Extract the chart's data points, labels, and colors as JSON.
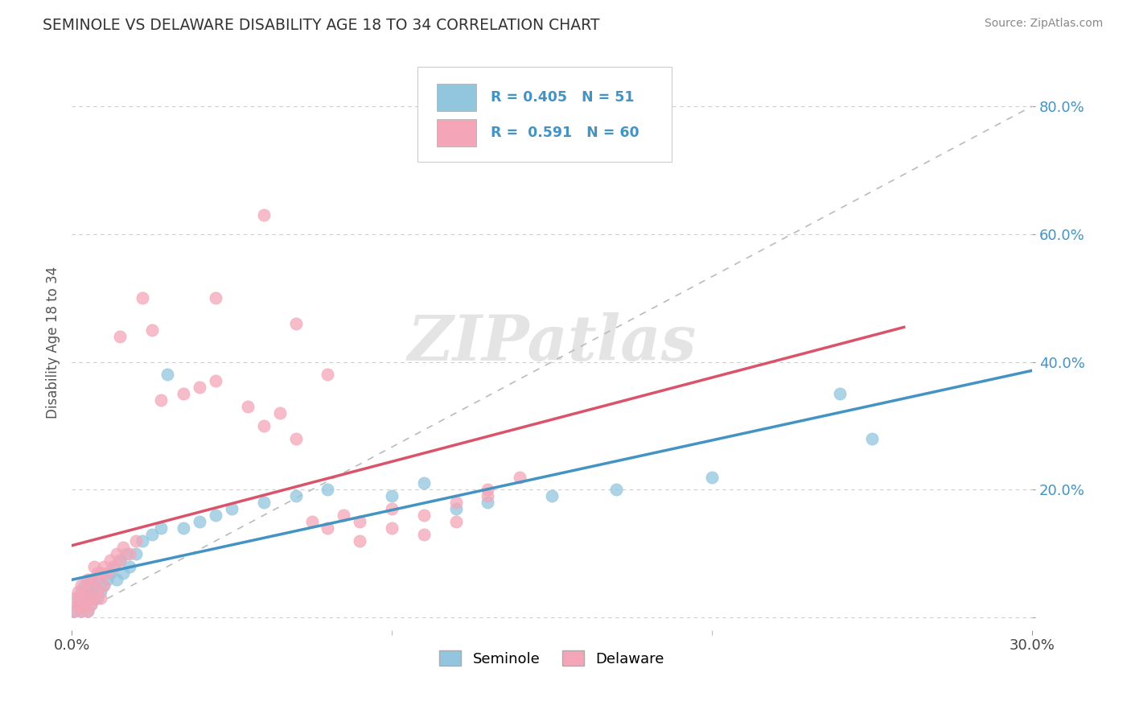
{
  "title": "SEMINOLE VS DELAWARE DISABILITY AGE 18 TO 34 CORRELATION CHART",
  "source": "Source: ZipAtlas.com",
  "ylabel": "Disability Age 18 to 34",
  "xlim": [
    0.0,
    0.3
  ],
  "ylim": [
    -0.02,
    0.88
  ],
  "seminole_R": 0.405,
  "seminole_N": 51,
  "delaware_R": 0.591,
  "delaware_N": 60,
  "seminole_color": "#92C5DE",
  "delaware_color": "#F4A6B8",
  "seminole_line_color": "#4393C3",
  "delaware_line_color": "#D9536A",
  "ref_line_color": "#BBBBBB",
  "watermark": "ZIPatlas",
  "background_color": "#FFFFFF",
  "seminole_x": [
    0.001,
    0.002,
    0.002,
    0.003,
    0.003,
    0.003,
    0.004,
    0.004,
    0.004,
    0.005,
    0.005,
    0.005,
    0.006,
    0.006,
    0.006,
    0.007,
    0.007,
    0.008,
    0.008,
    0.009,
    0.009,
    0.01,
    0.011,
    0.012,
    0.013,
    0.014,
    0.015,
    0.016,
    0.017,
    0.018,
    0.02,
    0.022,
    0.025,
    0.028,
    0.03,
    0.035,
    0.04,
    0.045,
    0.05,
    0.06,
    0.07,
    0.08,
    0.1,
    0.11,
    0.12,
    0.13,
    0.15,
    0.17,
    0.2,
    0.24,
    0.25
  ],
  "seminole_y": [
    0.01,
    0.02,
    0.03,
    0.01,
    0.02,
    0.04,
    0.02,
    0.03,
    0.05,
    0.01,
    0.03,
    0.04,
    0.02,
    0.04,
    0.06,
    0.03,
    0.05,
    0.03,
    0.06,
    0.04,
    0.07,
    0.05,
    0.06,
    0.07,
    0.08,
    0.06,
    0.09,
    0.07,
    0.1,
    0.08,
    0.1,
    0.12,
    0.13,
    0.14,
    0.38,
    0.14,
    0.15,
    0.16,
    0.17,
    0.18,
    0.19,
    0.2,
    0.19,
    0.21,
    0.17,
    0.18,
    0.19,
    0.2,
    0.22,
    0.35,
    0.28
  ],
  "delaware_x": [
    0.001,
    0.001,
    0.002,
    0.002,
    0.003,
    0.003,
    0.003,
    0.004,
    0.004,
    0.005,
    0.005,
    0.005,
    0.006,
    0.006,
    0.007,
    0.007,
    0.007,
    0.008,
    0.008,
    0.009,
    0.009,
    0.01,
    0.01,
    0.011,
    0.012,
    0.013,
    0.014,
    0.015,
    0.016,
    0.018,
    0.02,
    0.022,
    0.025,
    0.028,
    0.035,
    0.04,
    0.045,
    0.055,
    0.06,
    0.065,
    0.07,
    0.075,
    0.08,
    0.085,
    0.09,
    0.1,
    0.11,
    0.12,
    0.13,
    0.14,
    0.045,
    0.06,
    0.07,
    0.08,
    0.09,
    0.1,
    0.11,
    0.12,
    0.015,
    0.13
  ],
  "delaware_y": [
    0.01,
    0.03,
    0.02,
    0.04,
    0.01,
    0.03,
    0.05,
    0.02,
    0.04,
    0.01,
    0.03,
    0.06,
    0.02,
    0.05,
    0.03,
    0.06,
    0.08,
    0.04,
    0.07,
    0.03,
    0.07,
    0.05,
    0.08,
    0.07,
    0.09,
    0.08,
    0.1,
    0.09,
    0.11,
    0.1,
    0.12,
    0.5,
    0.45,
    0.34,
    0.35,
    0.36,
    0.37,
    0.33,
    0.3,
    0.32,
    0.28,
    0.15,
    0.14,
    0.16,
    0.15,
    0.17,
    0.16,
    0.18,
    0.2,
    0.22,
    0.5,
    0.63,
    0.46,
    0.38,
    0.12,
    0.14,
    0.13,
    0.15,
    0.44,
    0.19
  ]
}
